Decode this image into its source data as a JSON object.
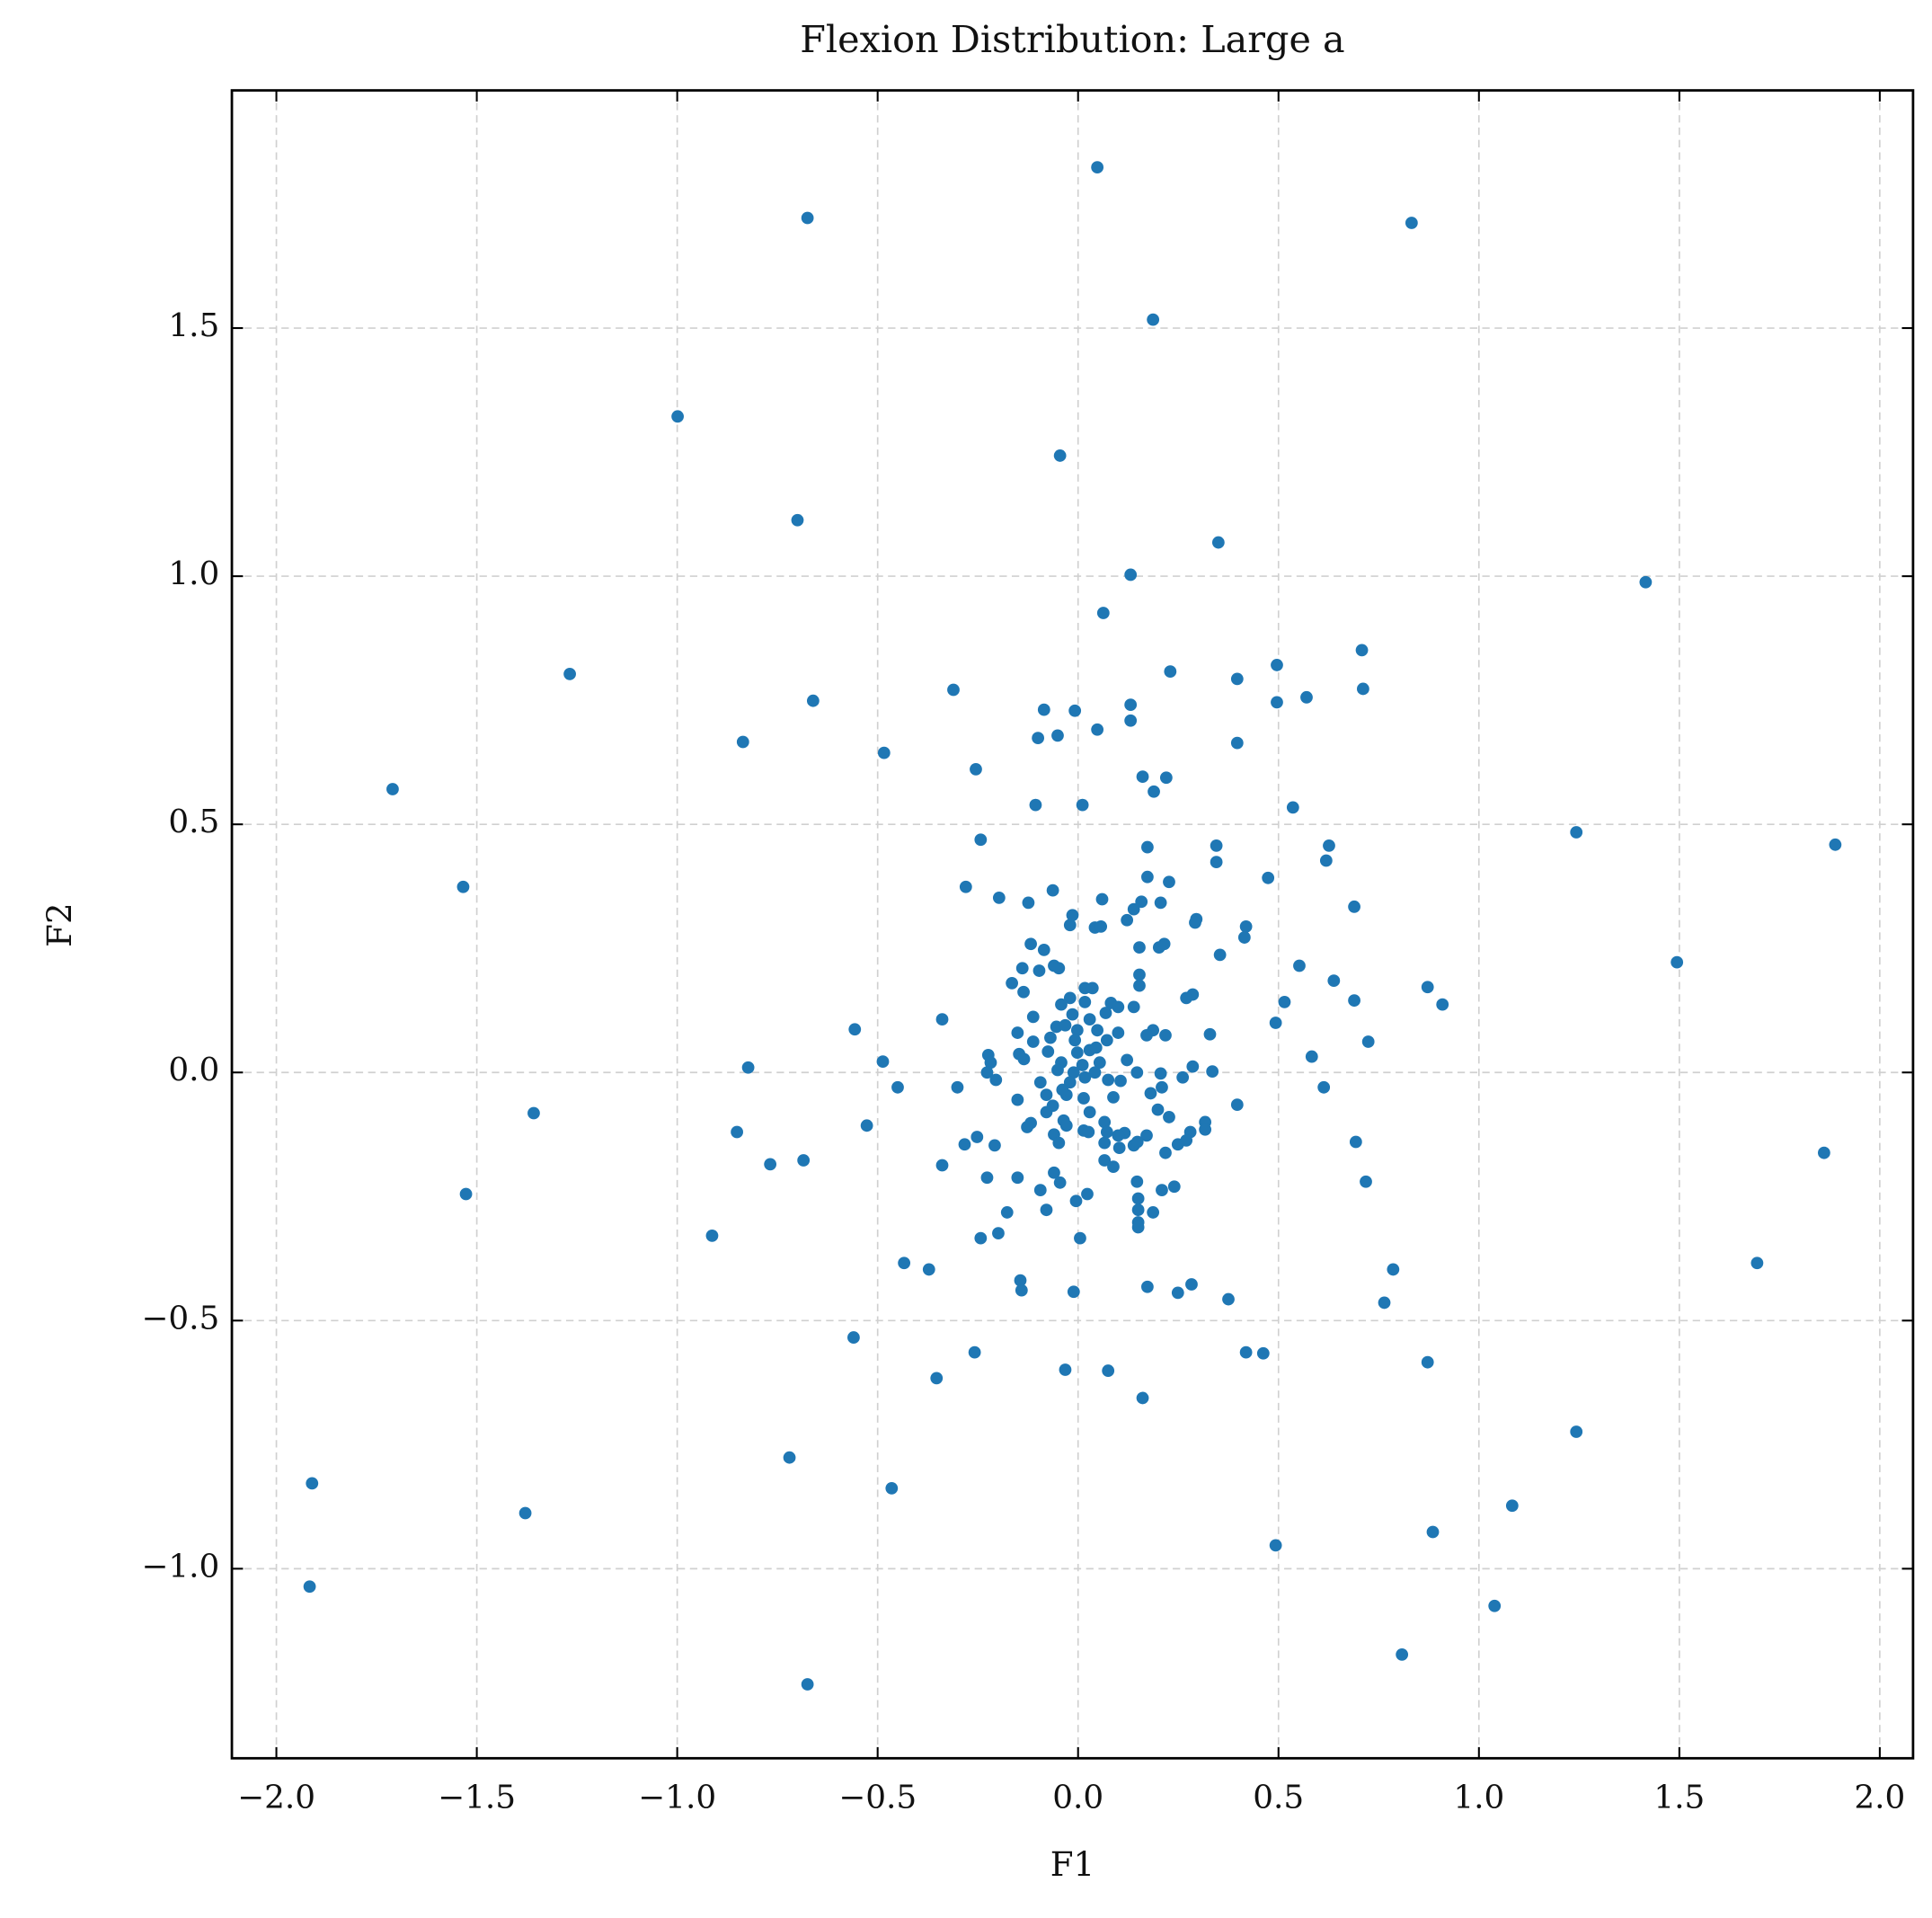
{
  "chart_data": {
    "type": "scatter",
    "title": "Flexion Distribution: Large a",
    "xlabel": "F1",
    "ylabel": "F2",
    "color": "#1f77b4",
    "grid": true,
    "xlim": [
      -2.111,
      2.083
    ],
    "ylim": [
      -1.382,
      1.979
    ],
    "xticks": [
      {
        "value": -2,
        "label": "−2.0"
      },
      {
        "value": -1.5,
        "label": "−1.5"
      },
      {
        "value": -1,
        "label": "−1.0"
      },
      {
        "value": -0.5,
        "label": "−0.5"
      },
      {
        "value": 0,
        "label": "0.0"
      },
      0.5,
      {
        "value": 1,
        "label": "1.0"
      },
      1.5,
      {
        "value": 2,
        "label": "2.0"
      }
    ],
    "yticks": [
      {
        "value": -1,
        "label": "−1.0"
      },
      {
        "value": -0.5,
        "label": "−0.5"
      },
      {
        "value": 0,
        "label": "0.0"
      },
      0.5,
      {
        "value": 1,
        "label": "1.0"
      },
      1.5
    ],
    "x": [
      0.048,
      -0.675,
      0.832,
      0.187,
      -0.999,
      -0.045,
      -0.7,
      0.35,
      0.131,
      1.416,
      0.063,
      -1.268,
      0.23,
      0.708,
      0.496,
      0.711,
      -0.311,
      0.397,
      0.57,
      0.496,
      -0.661,
      -0.085,
      -0.008,
      0.131,
      0.131,
      0.048,
      -0.1,
      -0.051,
      -0.836,
      0.397,
      -0.484,
      -1.71,
      -0.255,
      0.161,
      0.22,
      0.189,
      -0.106,
      0.011,
      0.536,
      1.243,
      -0.243,
      1.889,
      0.173,
      0.345,
      0.626,
      0.619,
      0.345,
      -1.534,
      -0.28,
      0.173,
      0.474,
      0.227,
      -0.063,
      -0.197,
      0.06,
      0.158,
      0.139,
      -0.124,
      0.689,
      0.206,
      -0.014,
      0.295,
      0.122,
      0.292,
      0.042,
      0.057,
      -0.02,
      0.419,
      0.415,
      -0.118,
      0.153,
      0.202,
      0.215,
      -0.085,
      0.354,
      1.494,
      0.552,
      -0.139,
      -0.06,
      -0.048,
      -0.097,
      0.153,
      0.638,
      -0.165,
      0.017,
      0.036,
      0.153,
      0.872,
      0.286,
      0.27,
      -0.136,
      -0.02,
      0.515,
      0.689,
      0.909,
      0.082,
      0.017,
      0.1,
      0.139,
      -0.042,
      0.069,
      -0.339,
      0.029,
      -0.112,
      -0.014,
      0.493,
      -0.557,
      -0.151,
      0.1,
      0.187,
      0.329,
      -0.054,
      -0.032,
      -0.002,
      0.048,
      0.218,
      0.171,
      0.724,
      -0.112,
      -0.069,
      -0.008,
      0.072,
      0.583,
      -0.224,
      -0.147,
      -0.075,
      0.029,
      -0.487,
      -0.823,
      0.122,
      0.286,
      -0.218,
      -0.135,
      -0.042,
      0.011,
      0.054,
      0.335,
      0.206,
      0.147,
      -0.227,
      -0.051,
      -0.011,
      0.042,
      0.261,
      -0.205,
      -0.094,
      -0.02,
      0.075,
      0.106,
      0.613,
      -0.301,
      -0.45,
      0.209,
      0.181,
      -0.079,
      -0.029,
      0.014,
      0.088,
      -0.151,
      0.397,
      -0.063,
      -1.358,
      0.199,
      0.029,
      -0.079,
      0.227,
      0.317,
      -0.118,
      -0.036,
      -0.527,
      0.066,
      -0.029,
      -0.127,
      -0.851,
      0.28,
      0.317,
      0.072,
      0.014,
      0.116,
      -0.06,
      0.026,
      0.171,
      0.1,
      0.693,
      0.27,
      -0.252,
      -0.048,
      -0.283,
      -0.208,
      0.249,
      0.139,
      0.148,
      0.066,
      0.103,
      0.218,
      1.861,
      -0.685,
      0.066,
      -0.768,
      -0.339,
      0.088,
      -0.06,
      -0.151,
      -0.227,
      -0.045,
      0.147,
      0.718,
      0.24,
      -0.094,
      0.209,
      -1.527,
      0.023,
      0.15,
      -0.005,
      -0.079,
      0.15,
      0.187,
      -0.177,
      0.15,
      0.15,
      -0.913,
      -0.199,
      -0.243,
      0.005,
      -0.434,
      -0.372,
      0.786,
      -0.144,
      -0.141,
      0.283,
      0.173,
      0.249,
      -0.011,
      0.375,
      0.764,
      -0.56,
      0.419,
      0.462,
      -0.258,
      0.872,
      -0.032,
      0.075,
      -0.353,
      0.161,
      1.243,
      1.694,
      -0.72,
      -1.911,
      -0.465,
      -1.379,
      0.493,
      0.885,
      -1.917,
      1.039,
      0.808,
      -0.675,
      1.083,
      -0.002,
      0.017,
      -0.039,
      0.045
    ],
    "values": [
      1.824,
      1.722,
      1.712,
      1.517,
      1.322,
      1.243,
      1.113,
      1.068,
      1.003,
      0.988,
      0.926,
      0.803,
      0.808,
      0.851,
      0.821,
      0.773,
      0.771,
      0.793,
      0.756,
      0.746,
      0.749,
      0.731,
      0.729,
      0.741,
      0.709,
      0.691,
      0.674,
      0.679,
      0.666,
      0.664,
      0.644,
      0.571,
      0.611,
      0.596,
      0.594,
      0.566,
      0.539,
      0.539,
      0.534,
      0.484,
      0.469,
      0.459,
      0.454,
      0.457,
      0.457,
      0.427,
      0.424,
      0.374,
      0.374,
      0.394,
      0.392,
      0.384,
      0.367,
      0.352,
      0.349,
      0.344,
      0.329,
      0.342,
      0.334,
      0.342,
      0.317,
      0.309,
      0.307,
      0.302,
      0.292,
      0.294,
      0.297,
      0.294,
      0.272,
      0.259,
      0.252,
      0.252,
      0.259,
      0.247,
      0.237,
      0.222,
      0.215,
      0.21,
      0.215,
      0.21,
      0.205,
      0.197,
      0.185,
      0.18,
      0.17,
      0.17,
      0.175,
      0.172,
      0.157,
      0.15,
      0.162,
      0.15,
      0.142,
      0.145,
      0.137,
      0.14,
      0.142,
      0.132,
      0.132,
      0.137,
      0.12,
      0.107,
      0.107,
      0.112,
      0.117,
      0.1,
      0.087,
      0.08,
      0.08,
      0.085,
      0.077,
      0.092,
      0.095,
      0.085,
      0.085,
      0.075,
      0.075,
      0.062,
      0.062,
      0.07,
      0.065,
      0.065,
      0.032,
      0.035,
      0.037,
      0.042,
      0.045,
      0.022,
      0.01,
      0.025,
      0.012,
      0.02,
      0.027,
      0.02,
      0.015,
      0.02,
      0.002,
      -0.002,
      0,
      0,
      0.005,
      0,
      0,
      -0.01,
      -0.015,
      -0.02,
      -0.02,
      -0.015,
      -0.017,
      -0.03,
      -0.03,
      -0.03,
      -0.03,
      -0.042,
      -0.045,
      -0.045,
      -0.052,
      -0.05,
      -0.055,
      -0.065,
      -0.067,
      -0.082,
      -0.075,
      -0.08,
      -0.08,
      -0.09,
      -0.1,
      -0.102,
      -0.097,
      -0.107,
      -0.1,
      -0.107,
      -0.11,
      -0.12,
      -0.12,
      -0.115,
      -0.12,
      -0.117,
      -0.122,
      -0.125,
      -0.12,
      -0.127,
      -0.127,
      -0.14,
      -0.137,
      -0.13,
      -0.142,
      -0.145,
      -0.147,
      -0.145,
      -0.147,
      -0.14,
      -0.142,
      -0.152,
      -0.162,
      -0.162,
      -0.177,
      -0.177,
      -0.185,
      -0.187,
      -0.19,
      -0.202,
      -0.212,
      -0.212,
      -0.222,
      -0.22,
      -0.22,
      -0.23,
      -0.237,
      -0.237,
      -0.245,
      -0.245,
      -0.254,
      -0.259,
      -0.277,
      -0.277,
      -0.282,
      -0.282,
      -0.302,
      -0.312,
      -0.329,
      -0.324,
      -0.334,
      -0.334,
      -0.384,
      -0.397,
      -0.397,
      -0.419,
      -0.439,
      -0.427,
      -0.432,
      -0.444,
      -0.442,
      -0.457,
      -0.464,
      -0.534,
      -0.564,
      -0.566,
      -0.564,
      -0.584,
      -0.599,
      -0.601,
      -0.616,
      -0.656,
      -0.724,
      -0.384,
      -0.776,
      -0.828,
      -0.838,
      -0.888,
      -0.953,
      -0.926,
      -1.036,
      -1.075,
      -1.173,
      -1.233,
      -0.873,
      0.04,
      -0.01,
      -0.035,
      0.05
    ]
  }
}
